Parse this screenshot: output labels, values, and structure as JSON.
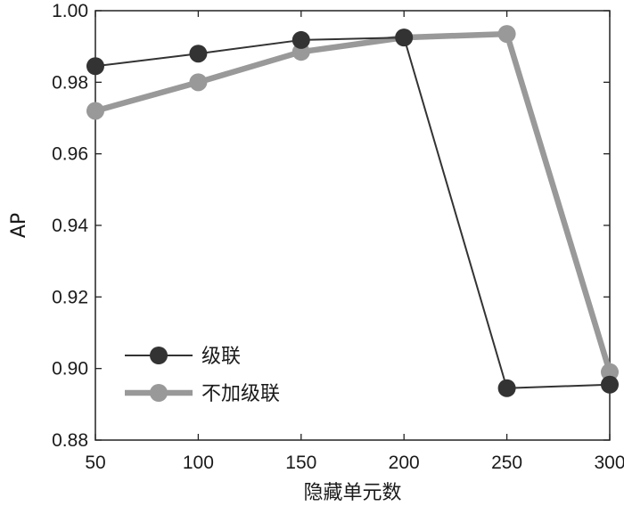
{
  "chart_data": {
    "type": "line",
    "xlabel": "隐藏单元数",
    "ylabel": "AP",
    "x": [
      50,
      100,
      150,
      200,
      250,
      300
    ],
    "xticks": [
      "50",
      "100",
      "150",
      "200",
      "250",
      "300"
    ],
    "yticks": [
      "0.88",
      "0.90",
      "0.92",
      "0.94",
      "0.96",
      "0.98",
      "1.00"
    ],
    "xlim": [
      50,
      300
    ],
    "ylim": [
      0.88,
      1.0
    ],
    "grid": false,
    "legend_position": "bottom-left",
    "series": [
      {
        "name": "级联",
        "values": [
          0.9845,
          0.988,
          0.9918,
          0.9925,
          0.8945,
          0.8955
        ],
        "color": "#333333",
        "line_style": "thin"
      },
      {
        "name": "不加级联",
        "values": [
          0.972,
          0.98,
          0.9885,
          0.9925,
          0.9935,
          0.899
        ],
        "color": "#999999",
        "line_style": "thick"
      }
    ]
  }
}
